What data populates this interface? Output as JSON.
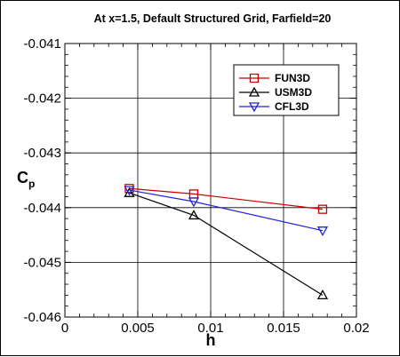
{
  "chart_data": {
    "type": "line",
    "title": "At x=1.5, Default Structured Grid, Farfield=20",
    "xlabel": "h",
    "ylabel_main": "C",
    "ylabel_sub": "p",
    "xlim": [
      0,
      0.02
    ],
    "ylim": [
      -0.046,
      -0.041
    ],
    "xticks": [
      0,
      0.005,
      0.01,
      0.015,
      0.02
    ],
    "xtick_labels": [
      "0",
      "0.005",
      "0.01",
      "0.015",
      "0.02"
    ],
    "yticks": [
      -0.046,
      -0.045,
      -0.044,
      -0.043,
      -0.042,
      -0.041
    ],
    "ytick_labels": [
      "-0.046",
      "-0.045",
      "-0.044",
      "-0.043",
      "-0.042",
      "-0.041"
    ],
    "grid": true,
    "legend_position": "top-right",
    "series": [
      {
        "name": "FUN3D",
        "color": "#cc0000",
        "marker": "square",
        "x": [
          0.00442,
          0.00884,
          0.01768
        ],
        "y": [
          -0.04365,
          -0.04375,
          -0.04403
        ]
      },
      {
        "name": "USM3D",
        "color": "#000000",
        "marker": "triangle-up",
        "x": [
          0.00442,
          0.00884,
          0.01768
        ],
        "y": [
          -0.04373,
          -0.04414,
          -0.0456
        ]
      },
      {
        "name": "CFL3D",
        "color": "#2222dd",
        "marker": "triangle-down",
        "x": [
          0.00442,
          0.00884,
          0.01768
        ],
        "y": [
          -0.04368,
          -0.04389,
          -0.04442
        ]
      }
    ]
  }
}
